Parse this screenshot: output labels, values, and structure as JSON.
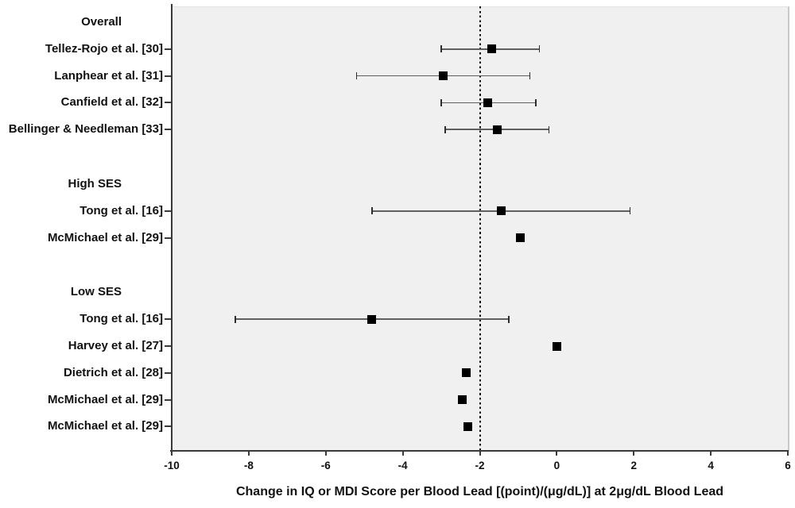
{
  "chart_data": {
    "type": "scatter",
    "subtype": "forest-plot",
    "title": "",
    "xlabel": "Change in IQ or MDI Score per Blood Lead [(point)/(μg/dL)] at 2μg/dL Blood Lead",
    "ylabel": "",
    "xlim": [
      -10,
      6
    ],
    "x_ticks": [
      -10,
      -8,
      -6,
      -4,
      -2,
      0,
      2,
      4,
      6
    ],
    "reference_line_x": -2,
    "reference_line_style": "dotted",
    "grid": false,
    "legend": "none",
    "marker_shape": "square",
    "groups": [
      {
        "header": "Overall",
        "studies": [
          {
            "label": "Tellez-Rojo et al. [30]",
            "estimate": -1.7,
            "ci_low": -3.0,
            "ci_high": -0.45
          },
          {
            "label": "Lanphear et al. [31]",
            "estimate": -2.95,
            "ci_low": -5.2,
            "ci_high": -0.7
          },
          {
            "label": "Canfield et al. [32]",
            "estimate": -1.8,
            "ci_low": -3.0,
            "ci_high": -0.55
          },
          {
            "label": "Bellinger & Needleman [33]",
            "estimate": -1.55,
            "ci_low": -2.9,
            "ci_high": -0.2
          }
        ]
      },
      {
        "header": "High SES",
        "studies": [
          {
            "label": "Tong et al. [16]",
            "estimate": -1.45,
            "ci_low": -4.8,
            "ci_high": 1.9
          },
          {
            "label": "McMichael et al. [29]",
            "estimate": -0.95,
            "ci_low": null,
            "ci_high": null
          }
        ]
      },
      {
        "header": "Low SES",
        "studies": [
          {
            "label": "Tong et al. [16]",
            "estimate": -4.8,
            "ci_low": -8.35,
            "ci_high": -1.25
          },
          {
            "label": "Harvey et al. [27]",
            "estimate": 0,
            "ci_low": null,
            "ci_high": null
          },
          {
            "label": "Dietrich et al. [28]",
            "estimate": -2.35,
            "ci_low": null,
            "ci_high": null
          },
          {
            "label": "McMichael et al. [29]",
            "estimate": -2.45,
            "ci_low": null,
            "ci_high": null
          },
          {
            "label": "McMichael et al. [29]",
            "estimate": -2.3,
            "ci_low": null,
            "ci_high": null
          }
        ]
      }
    ],
    "colors": {
      "marker": "#000000",
      "ci_line": "#5f5f5f",
      "ci_cap": "#2d2d2d",
      "axis": "#3a3a3a",
      "plot_bg": "#f0f0f0",
      "reference_line": "#111111",
      "text": "#111111",
      "page_bg": "#ffffff"
    }
  }
}
